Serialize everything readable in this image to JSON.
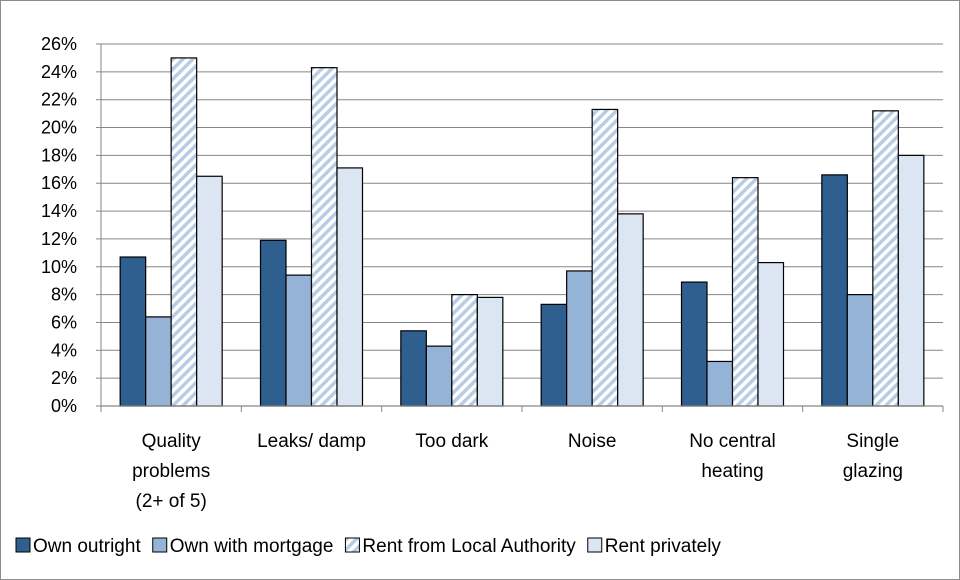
{
  "chart_data": {
    "type": "bar",
    "categories": [
      [
        "Quality",
        "problems",
        "(2+ of 5)"
      ],
      [
        "Leaks/ damp"
      ],
      [
        "Too dark"
      ],
      [
        "Noise"
      ],
      [
        "No central",
        "heating"
      ],
      [
        "Single",
        "glazing"
      ]
    ],
    "series": [
      {
        "name": "Own outright",
        "values": [
          10.7,
          11.9,
          5.4,
          7.3,
          8.9,
          16.6
        ],
        "color": "#2f5f8f",
        "pattern": "solid"
      },
      {
        "name": "Own with mortgage",
        "values": [
          6.4,
          9.4,
          4.3,
          9.7,
          3.2,
          8.0
        ],
        "color": "#95b3d7",
        "pattern": "solid"
      },
      {
        "name": "Rent from Local Authority",
        "values": [
          25.0,
          24.3,
          8.0,
          21.3,
          16.4,
          21.2
        ],
        "color": "#b8cce4",
        "pattern": "diagonal-stripes"
      },
      {
        "name": "Rent privately",
        "values": [
          16.5,
          17.1,
          7.8,
          13.8,
          10.3,
          18.0
        ],
        "color": "#dce6f2",
        "pattern": "solid"
      }
    ],
    "ylim": [
      0,
      26
    ],
    "yticks": [
      "0%",
      "2%",
      "4%",
      "6%",
      "8%",
      "10%",
      "12%",
      "14%",
      "16%",
      "18%",
      "20%",
      "22%",
      "24%",
      "26%"
    ],
    "grid": true,
    "legend_position": "bottom",
    "title": "",
    "xlabel": "",
    "ylabel": ""
  }
}
